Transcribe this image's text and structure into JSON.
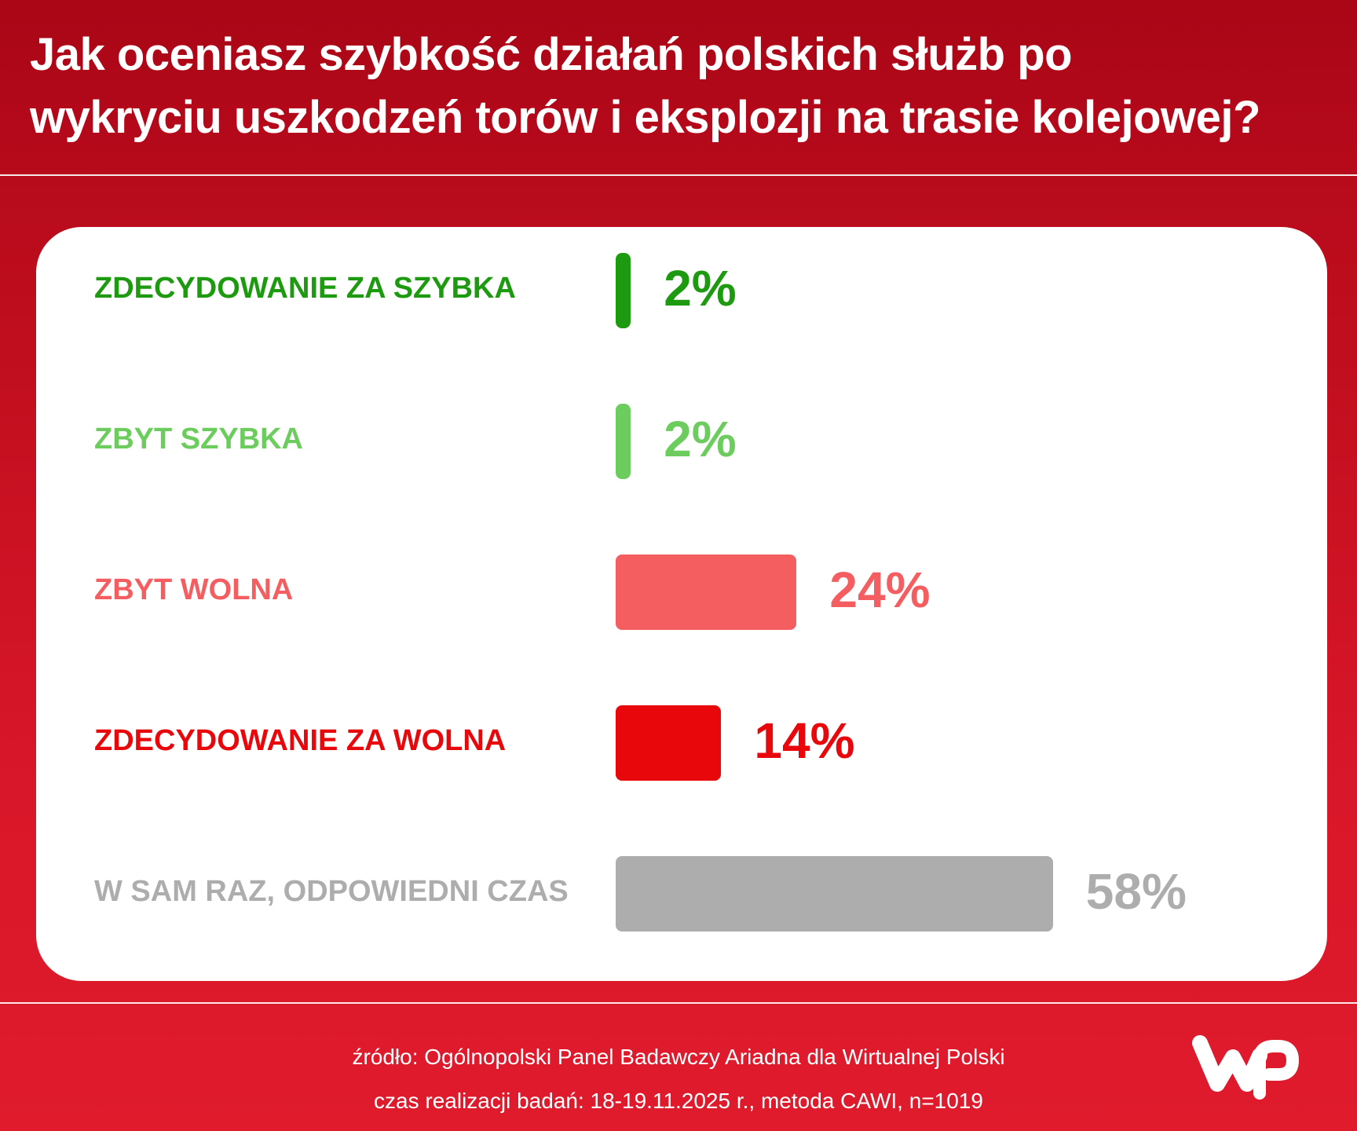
{
  "header": {
    "title_line1": "Jak oceniasz szybkość działań polskich służb po",
    "title_line2": "wykryciu uszkodzeń torów i eksplozji na trasie kolejowej?"
  },
  "chart_data": {
    "type": "bar",
    "orientation": "horizontal",
    "title": "Jak oceniasz szybkość działań polskich służb po wykryciu uszkodzeń torów i eksplozji na trasie kolejowej?",
    "categories": [
      "ZDECYDOWANIE ZA SZYBKA",
      "ZBYT SZYBKA",
      "ZBYT WOLNA",
      "ZDECYDOWANIE ZA WOLNA",
      "W SAM RAZ, ODPOWIEDNI CZAS"
    ],
    "values": [
      2,
      2,
      24,
      14,
      58
    ],
    "value_labels": [
      "2%",
      "2%",
      "24%",
      "14%",
      "58%"
    ],
    "unit": "%",
    "colors": [
      "#1e9a10",
      "#6dcc5e",
      "#f45e61",
      "#e8080c",
      "#adadad"
    ],
    "xlim": [
      0,
      100
    ],
    "grid": false,
    "legend": "none"
  },
  "footer": {
    "source": "źródło: Ogólnopolski Panel Badawczy Ariadna dla Wirtualnej Polski",
    "details": "czas realizacji badań: 18-19.11.2025 r., metoda CAWI, n=1019"
  },
  "logo": {
    "icon": "wp-logo-icon"
  }
}
